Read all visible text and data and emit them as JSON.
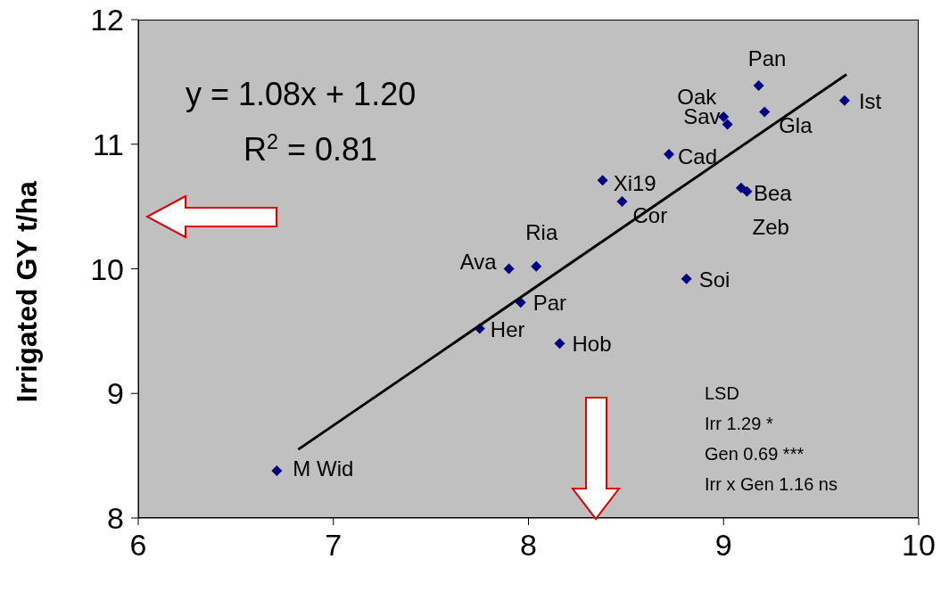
{
  "chart_data": {
    "type": "scatter",
    "ylabel": "Irrigated GY t/ha",
    "xlim": [
      6,
      10
    ],
    "xticks": [
      6,
      7,
      8,
      9,
      10
    ],
    "ylim": [
      8,
      12
    ],
    "yticks": [
      8,
      9,
      10,
      11,
      12
    ],
    "series": [
      {
        "color": "#000080",
        "marker": "diamond",
        "x": [
          6.71,
          7.75,
          7.9,
          8.04,
          7.96,
          8.16,
          8.38,
          8.48,
          8.72,
          8.81,
          9.0,
          9.02,
          9.18,
          9.21,
          9.62,
          9.09,
          9.12
        ],
        "values": [
          8.38,
          9.52,
          10.0,
          10.02,
          9.73,
          9.4,
          10.71,
          10.54,
          10.92,
          9.92,
          11.22,
          11.16,
          11.47,
          11.26,
          11.35,
          10.65,
          10.62
        ]
      },
      {
        "type": "line",
        "color": "#000000",
        "x": [
          6.82,
          9.63
        ],
        "values": [
          8.55,
          11.56
        ]
      }
    ],
    "annotations": [
      {
        "text": "M Wid",
        "x": 6.71,
        "y": 8.38
      },
      {
        "text": "Her",
        "x": 7.75,
        "y": 9.52
      },
      {
        "text": "Ava",
        "x": 7.9,
        "y": 10.0
      },
      {
        "text": "Ria",
        "x": 8.04,
        "y": 10.02
      },
      {
        "text": "Par",
        "x": 7.96,
        "y": 9.73
      },
      {
        "text": "Hob",
        "x": 8.16,
        "y": 9.4
      },
      {
        "text": "Xi19",
        "x": 8.38,
        "y": 10.71
      },
      {
        "text": "Cor",
        "x": 8.48,
        "y": 10.54
      },
      {
        "text": "Cad",
        "x": 8.72,
        "y": 10.92
      },
      {
        "text": "Soi",
        "x": 8.81,
        "y": 9.92
      },
      {
        "text": "Oak",
        "x": 9.0,
        "y": 11.22
      },
      {
        "text": "Sav",
        "x": 9.02,
        "y": 11.16
      },
      {
        "text": "Pan",
        "x": 9.18,
        "y": 11.47
      },
      {
        "text": "Gla",
        "x": 9.21,
        "y": 11.26
      },
      {
        "text": "Ist",
        "x": 9.62,
        "y": 11.35
      },
      {
        "text": "Bea",
        "x": 9.09,
        "y": 10.65
      },
      {
        "text": "Zeb",
        "x": 9.12,
        "y": 10.62
      },
      "y = 1.08x + 1.20",
      "R$^{2}$ = 0.81",
      "LSD",
      "Irr 1.29 *",
      "Gen 0.69 ***",
      "Irr x Gen 1.16 ns"
    ]
  }
}
